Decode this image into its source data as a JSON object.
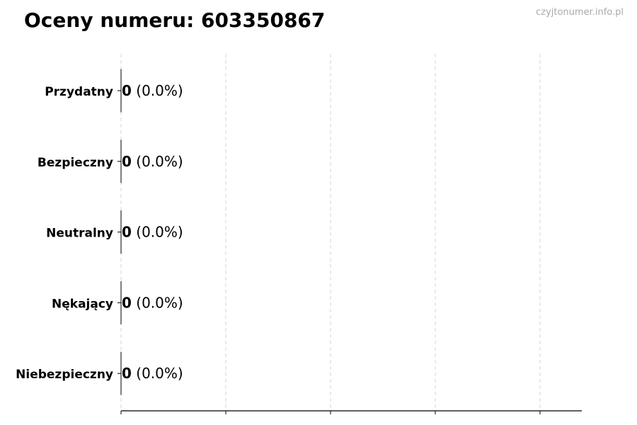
{
  "chart_data": {
    "type": "bar",
    "orientation": "horizontal",
    "title": "Oceny numeru: 603350867",
    "watermark": "czyjtonumer.info.pl",
    "categories": [
      "Przydatny",
      "Bezpieczny",
      "Neutralny",
      "Nękający",
      "Niebezpieczny"
    ],
    "values": [
      0,
      0,
      0,
      0,
      0
    ],
    "percent_labels": [
      "(0.0%)",
      "(0.0%)",
      "(0.0%)",
      "(0.0%)",
      "(0.0%)"
    ],
    "grid": "x dashed",
    "x_tick_labels": "none",
    "xlim": [
      0,
      4.4
    ]
  }
}
